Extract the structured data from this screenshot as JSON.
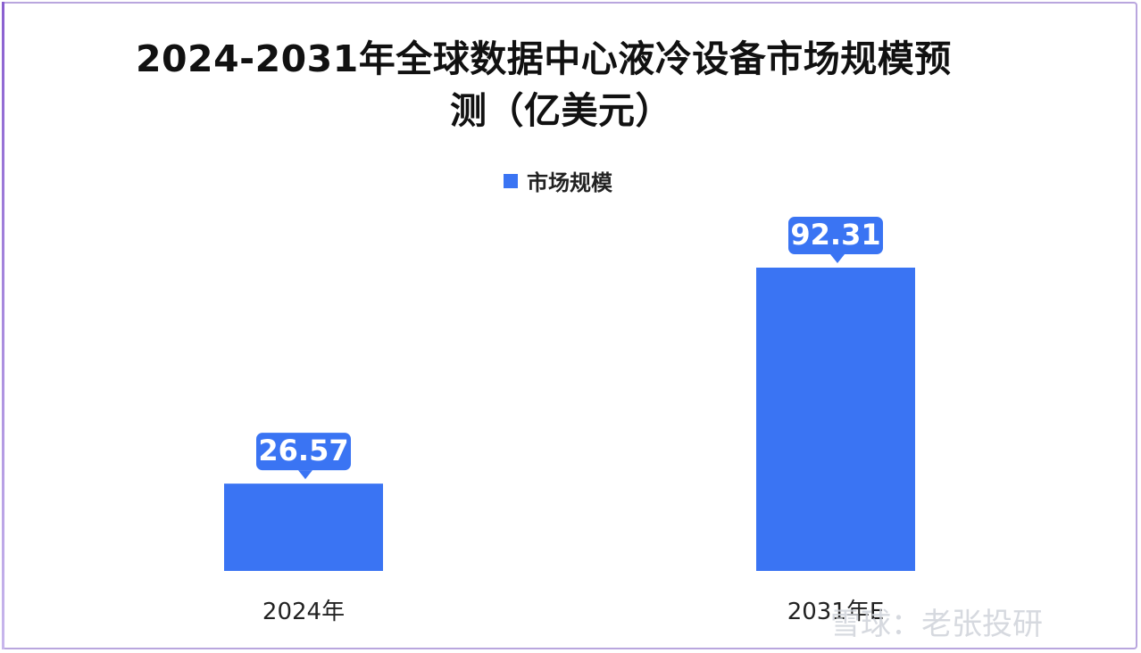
{
  "chart_data": {
    "type": "bar",
    "title_line1": "2024-2031年全球数据中心液冷设备市场规模预",
    "title_line2": "测（亿美元）",
    "categories": [
      "2024年",
      "2031年E"
    ],
    "series": [
      {
        "name": "市场规模",
        "values": [
          26.57,
          92.31
        ],
        "labels": [
          "26.57",
          "92.31"
        ],
        "color": "#3a74f3"
      }
    ],
    "legend_position": "top-center",
    "grid": false,
    "y_axis_visible": false
  },
  "watermark": "雪球：老张投研"
}
